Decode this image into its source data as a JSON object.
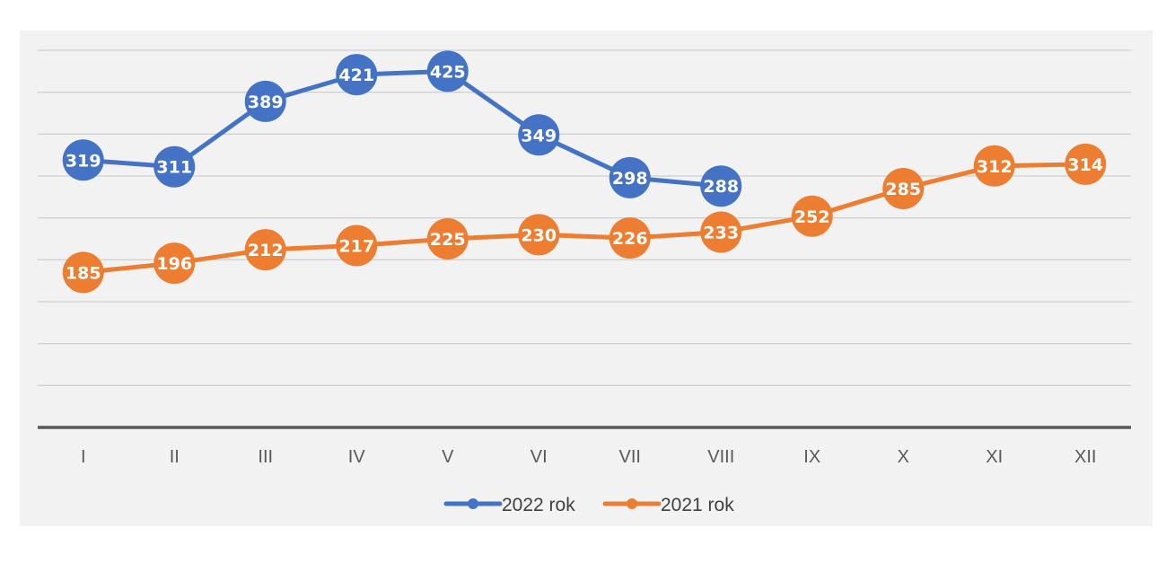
{
  "chart_data": {
    "type": "line",
    "title": "",
    "xlabel": "",
    "ylabel": "",
    "categories": [
      "I",
      "II",
      "III",
      "IV",
      "V",
      "VI",
      "VII",
      "VIII",
      "IX",
      "X",
      "XI",
      "XII"
    ],
    "ylim": [
      0,
      450
    ],
    "y_gridlines": [
      50,
      100,
      150,
      200,
      250,
      300,
      350,
      400,
      450
    ],
    "y_tick_labels_shown": false,
    "grid": true,
    "legend": "bottom",
    "series": [
      {
        "name": "2022 rok",
        "color": "#4472c4",
        "values": [
          319,
          311,
          389,
          421,
          425,
          349,
          298,
          288,
          null,
          null,
          null,
          null
        ]
      },
      {
        "name": "2021 rok",
        "color": "#ed7d31",
        "values": [
          185,
          196,
          212,
          217,
          225,
          230,
          226,
          233,
          252,
          285,
          312,
          314
        ]
      }
    ]
  }
}
